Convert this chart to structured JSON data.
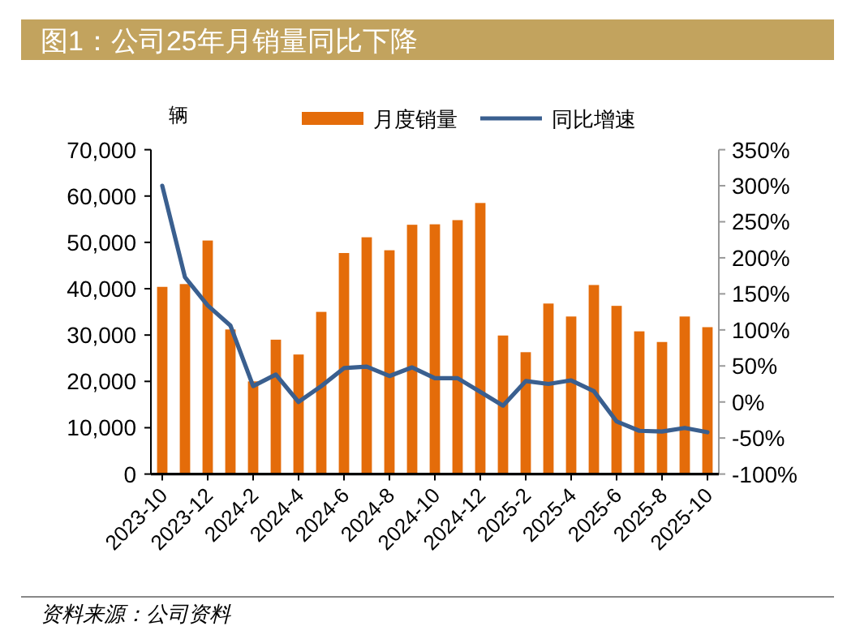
{
  "chart_data": {
    "type": "bar",
    "title": "图1：公司25年月销量同比下降",
    "ylabel": "辆",
    "legend": "top",
    "categories": [
      "2023-10",
      null,
      "2023-12",
      null,
      "2024-2",
      null,
      "2024-4",
      null,
      "2024-6",
      null,
      "2024-8",
      null,
      "2024-10",
      null,
      "2024-12",
      null,
      "2025-2",
      null,
      "2025-4",
      null,
      "2025-6",
      null,
      "2025-8",
      null,
      "2025-10"
    ],
    "series": [
      {
        "name": "月度销量",
        "color": "#e46c0a",
        "values": [
          40400,
          41000,
          50400,
          31200,
          20000,
          29000,
          25800,
          35000,
          47700,
          51100,
          48300,
          53800,
          53900,
          54800,
          58500,
          29900,
          26300,
          36800,
          34000,
          40800,
          36300,
          30800,
          28500,
          34000,
          31700
        ]
      },
      {
        "name": "同比增速",
        "type": "line",
        "axis": "y2",
        "color": "#3a5f8f",
        "values": [
          300,
          173,
          134,
          106,
          22,
          38,
          0,
          22,
          47,
          49,
          36,
          48,
          33,
          33,
          14,
          -5,
          29,
          25,
          30,
          15,
          -27,
          -40,
          -41,
          -36,
          -42
        ]
      }
    ],
    "ylim": [
      0,
      70000
    ],
    "yticks": [
      {
        "value": 0,
        "label": "0"
      },
      {
        "value": 10000,
        "label": "10,000"
      },
      {
        "value": 20000,
        "label": "20,000"
      },
      {
        "value": 30000,
        "label": "30,000"
      },
      {
        "value": 40000,
        "label": "40,000"
      },
      {
        "value": 50000,
        "label": "50,000"
      },
      {
        "value": 60000,
        "label": "60,000"
      },
      {
        "value": 70000,
        "label": "70,000"
      }
    ],
    "y2lim": [
      -100,
      350
    ],
    "y2ticks": [
      {
        "value": -100,
        "label": "-100%"
      },
      {
        "value": -50,
        "label": "-50%"
      },
      {
        "value": 0,
        "label": "0%"
      },
      {
        "value": 50,
        "label": "50%"
      },
      {
        "value": 100,
        "label": "100%"
      },
      {
        "value": 150,
        "label": "150%"
      },
      {
        "value": 200,
        "label": "200%"
      },
      {
        "value": 250,
        "label": "250%"
      },
      {
        "value": 300,
        "label": "300%"
      },
      {
        "value": 350,
        "label": "350%"
      }
    ],
    "annotations": [
      "资料来源：公司资料"
    ]
  }
}
